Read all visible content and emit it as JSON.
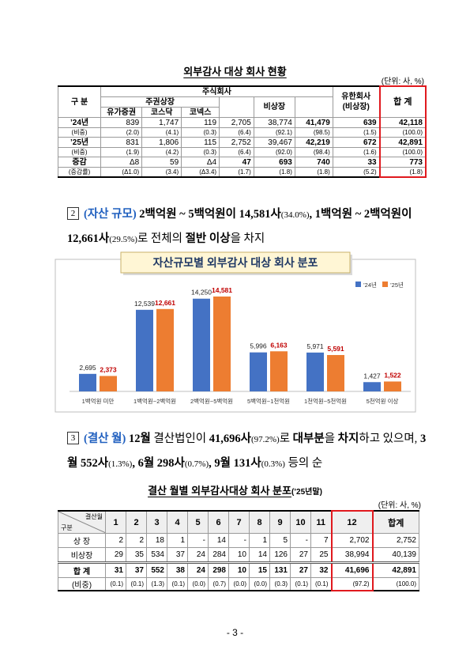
{
  "table1": {
    "title": "외부감사 대상 회사 현황",
    "unit": "(단위: 사, %)",
    "header": {
      "group": "구 분",
      "stock": "주식회사",
      "listed": "주권상장",
      "unlisted": "비상장",
      "llc": [
        "유한회사",
        "(비상장)"
      ],
      "total": "합 계",
      "sub": [
        "유가증권",
        "코스닥",
        "코넥스"
      ]
    },
    "rows": [
      {
        "label": "’24년",
        "cells": [
          "839",
          "1,747",
          "119",
          "2,705",
          "38,774",
          "41,479",
          "639",
          "42,118"
        ]
      },
      {
        "label": "(비중)",
        "cells": [
          "(2.0)",
          "(4.1)",
          "(0.3)",
          "(6.4)",
          "(92.1)",
          "(98.5)",
          "(1.5)",
          "(100.0)"
        ]
      },
      {
        "label": "’25년",
        "cells": [
          "831",
          "1,806",
          "115",
          "2,752",
          "39,467",
          "42,219",
          "672",
          "42,891"
        ]
      },
      {
        "label": "(비중)",
        "cells": [
          "(1.9)",
          "(4.2)",
          "(0.3)",
          "(6.4)",
          "(92.0)",
          "(98.4)",
          "(1.6)",
          "(100.0)"
        ]
      },
      {
        "label": "증감",
        "cells": [
          "Δ8",
          "59",
          "Δ4",
          "47",
          "693",
          "740",
          "33",
          "773"
        ]
      },
      {
        "label": "(증감률)",
        "cells": [
          "(Δ1.0)",
          "(3.4)",
          "(Δ3.4)",
          "(1.7)",
          "(1.8)",
          "(1.8)",
          "(5.2)",
          "(1.8)"
        ]
      }
    ]
  },
  "para2": {
    "marker": "2",
    "segments": [
      "(자산 규모)",
      "2백억원 ~ 5백억원이 14,581사",
      "(34.0%)",
      ", 1백억원 ~ 2백억원이",
      "12,661사",
      "(29.5%)",
      "로 전체의",
      "절반 이상",
      "을 차지"
    ]
  },
  "chart_data": {
    "type": "bar",
    "title": "자산규모별 외부감사 대상 회사 분포",
    "categories": [
      "1백억원 미만",
      "1백억원~2백억원",
      "2백억원~5백억원",
      "5백억원~1천억원",
      "1천억원~5천억원",
      "5천억원 이상"
    ],
    "series": [
      {
        "name": "’24년",
        "color": "#4472c4",
        "label_color": "#222222",
        "values": [
          2695,
          12539,
          14250,
          5996,
          5971,
          1427
        ],
        "value_labels": [
          "2,695",
          "12,539",
          "14,250",
          "5,996",
          "5,971",
          "1,427"
        ]
      },
      {
        "name": "’25년",
        "color": "#ed7d31",
        "label_color": "#c00000",
        "values": [
          2373,
          12661,
          14581,
          6163,
          5591,
          1522
        ],
        "value_labels": [
          "2,373",
          "12,661",
          "14,581",
          "6,163",
          "5,591",
          "1,522"
        ]
      }
    ],
    "legend": "top-right",
    "grid": false
  },
  "para3": {
    "marker": "3",
    "segments": [
      "(결산 월)",
      "12월",
      "결산법인이",
      "41,696사",
      "(97.2%)",
      "로",
      "대부분",
      "을",
      "차지",
      "하고 있으며,",
      "3월 552사",
      "(1.3%)",
      ", 6월 298사",
      "(0.7%)",
      ", 9월 131사",
      "(0.3%)",
      "등의 순"
    ]
  },
  "table2": {
    "title": "결산 월별 외부감사대상 회사 분포",
    "title_note": "(’25년말)",
    "unit": "(단위: 사, %)",
    "header": {
      "corner_top": "결산월",
      "corner_bottom": "구분",
      "months": [
        "1",
        "2",
        "3",
        "4",
        "5",
        "6",
        "7",
        "8",
        "9",
        "10",
        "11",
        "12",
        "합계"
      ]
    },
    "rows": [
      {
        "label": "상 장",
        "cells": [
          "2",
          "2",
          "18",
          "1",
          "-",
          "14",
          "-",
          "1",
          "5",
          "-",
          "7",
          "2,702",
          "2,752"
        ]
      },
      {
        "label": "비상장",
        "cells": [
          "29",
          "35",
          "534",
          "37",
          "24",
          "284",
          "10",
          "14",
          "126",
          "27",
          "25",
          "38,994",
          "40,139"
        ]
      },
      {
        "label": "합 계",
        "cells": [
          "31",
          "37",
          "552",
          "38",
          "24",
          "298",
          "10",
          "15",
          "131",
          "27",
          "32",
          "41,696",
          "42,891"
        ]
      },
      {
        "label": "(비중)",
        "cells": [
          "(0.1)",
          "(0.1)",
          "(1.3)",
          "(0.1)",
          "(0.0)",
          "(0.7)",
          "(0.0)",
          "(0.0)",
          "(0.3)",
          "(0.1)",
          "(0.1)",
          "(97.2)",
          "(100.0)"
        ]
      }
    ]
  },
  "footer": {
    "page": "- 3 -"
  }
}
